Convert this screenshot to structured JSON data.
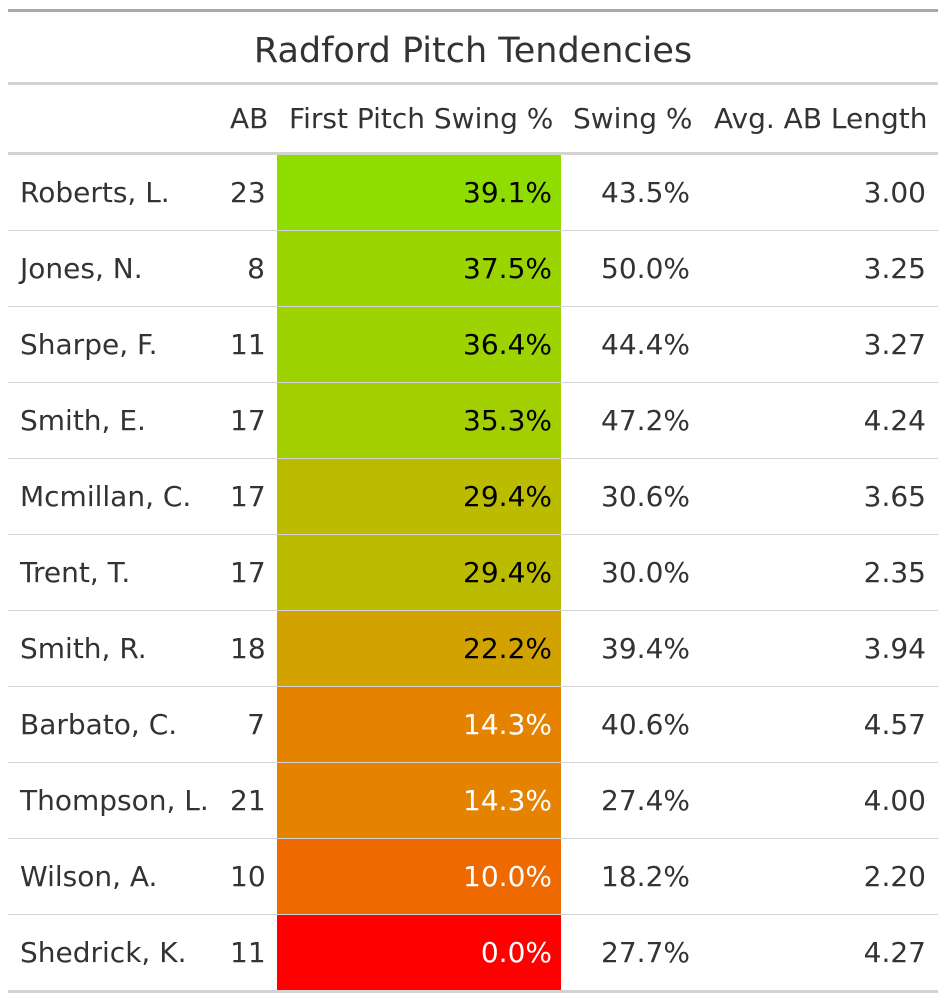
{
  "chart_data": {
    "type": "table",
    "title": "Radford Pitch Tendencies",
    "columns": [
      "",
      "AB",
      "First Pitch Swing %",
      "Swing %",
      "Avg. AB Length"
    ],
    "rows": [
      {
        "name": "Roberts, L.",
        "ab": "23",
        "fps": "39.1%",
        "fps_value": 39.1,
        "fps_color": "#8FDD00",
        "fps_text_color": "#000000",
        "swing": "43.5%",
        "len": "3.00"
      },
      {
        "name": "Jones, N.",
        "ab": "8",
        "fps": "37.5%",
        "fps_value": 37.5,
        "fps_color": "#9AD500",
        "fps_text_color": "#000000",
        "swing": "50.0%",
        "len": "3.25"
      },
      {
        "name": "Sharpe, F.",
        "ab": "11",
        "fps": "36.4%",
        "fps_value": 36.4,
        "fps_color": "#9CD300",
        "fps_text_color": "#000000",
        "swing": "44.4%",
        "len": "3.27"
      },
      {
        "name": "Smith, E.",
        "ab": "17",
        "fps": "35.3%",
        "fps_value": 35.3,
        "fps_color": "#A2CF00",
        "fps_text_color": "#000000",
        "swing": "47.2%",
        "len": "4.24"
      },
      {
        "name": "Mcmillan, C.",
        "ab": "17",
        "fps": "29.4%",
        "fps_value": 29.4,
        "fps_color": "#BBBB00",
        "fps_text_color": "#000000",
        "swing": "30.6%",
        "len": "3.65"
      },
      {
        "name": "Trent, T.",
        "ab": "17",
        "fps": "29.4%",
        "fps_value": 29.4,
        "fps_color": "#BBBB00",
        "fps_text_color": "#000000",
        "swing": "30.0%",
        "len": "2.35"
      },
      {
        "name": "Smith, R.",
        "ab": "18",
        "fps": "22.2%",
        "fps_value": 22.2,
        "fps_color": "#D2A300",
        "fps_text_color": "#000000",
        "swing": "39.4%",
        "len": "3.94"
      },
      {
        "name": "Barbato, C.",
        "ab": "7",
        "fps": "14.3%",
        "fps_value": 14.3,
        "fps_color": "#E58300",
        "fps_text_color": "#ffffff",
        "swing": "40.6%",
        "len": "4.57"
      },
      {
        "name": "Thompson, L.",
        "ab": "21",
        "fps": "14.3%",
        "fps_value": 14.3,
        "fps_color": "#E58300",
        "fps_text_color": "#ffffff",
        "swing": "27.4%",
        "len": "4.00"
      },
      {
        "name": "Wilson, A.",
        "ab": "10",
        "fps": "10.0%",
        "fps_value": 10.0,
        "fps_color": "#EE6A00",
        "fps_text_color": "#ffffff",
        "swing": "18.2%",
        "len": "2.20"
      },
      {
        "name": "Shedrick, K.",
        "ab": "11",
        "fps": "0.0%",
        "fps_value": 0.0,
        "fps_color": "#FF0000",
        "fps_text_color": "#ffffff",
        "swing": "27.7%",
        "len": "4.27"
      }
    ]
  }
}
